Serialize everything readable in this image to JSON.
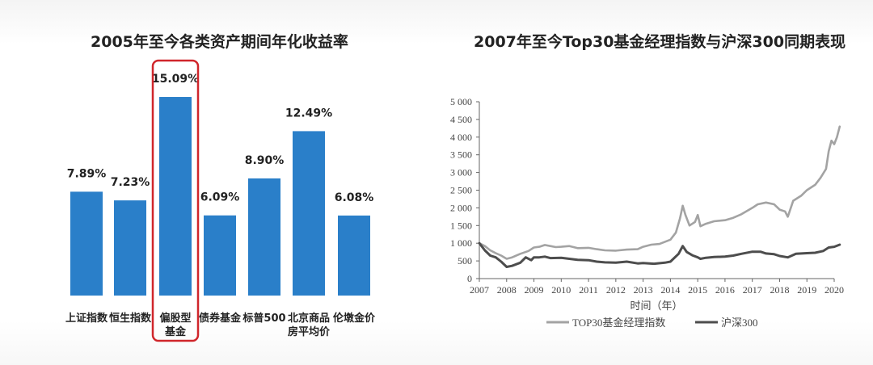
{
  "chart_data": [
    {
      "type": "bar",
      "title": "2005年至今各类资产期间年化收益率",
      "categories": [
        "上证指数",
        "恒生指数",
        "偏股型\n基金",
        "债券基金",
        "标普500",
        "北京商品\n房平均价",
        "伦墩金价"
      ],
      "values": [
        7.89,
        7.23,
        15.09,
        6.09,
        8.9,
        12.49,
        6.08
      ],
      "value_labels": [
        "7.89%",
        "7.23%",
        "15.09%",
        "6.09%",
        "8.90%",
        "12.49%",
        "6.08%"
      ],
      "bar_color": "#2a7fc9",
      "highlight_index": 2,
      "highlight_color": "#d0262b"
    },
    {
      "type": "line",
      "title": "2007年至今Top30基金经理指数与沪深300同期表现",
      "xlabel": "时间（年）",
      "xlim": [
        2007,
        2020
      ],
      "ylim": [
        0,
        5000
      ],
      "x_ticks": [
        "2007",
        "2008",
        "2009",
        "2010",
        "2011",
        "2012",
        "2013",
        "2014",
        "2015",
        "2016",
        "2017",
        "2018",
        "2019",
        "2020"
      ],
      "y_ticks": [
        "0",
        "500",
        "1 000",
        "1 500",
        "2 000",
        "2 500",
        "3 000",
        "3 500",
        "4 000",
        "4 500",
        "5 000"
      ],
      "legend_position": "bottom",
      "series": [
        {
          "name": "TOP30基金经理指数",
          "color": "#a3a3a3",
          "points": [
            [
              2007.0,
              1000
            ],
            [
              2007.2,
              920
            ],
            [
              2007.4,
              800
            ],
            [
              2007.6,
              720
            ],
            [
              2007.8,
              650
            ],
            [
              2008.0,
              560
            ],
            [
              2008.2,
              600
            ],
            [
              2008.5,
              700
            ],
            [
              2008.8,
              780
            ],
            [
              2009.0,
              880
            ],
            [
              2009.2,
              900
            ],
            [
              2009.4,
              950
            ],
            [
              2009.6,
              920
            ],
            [
              2009.8,
              890
            ],
            [
              2010.0,
              900
            ],
            [
              2010.3,
              920
            ],
            [
              2010.6,
              860
            ],
            [
              2011.0,
              870
            ],
            [
              2011.3,
              830
            ],
            [
              2011.6,
              800
            ],
            [
              2012.0,
              790
            ],
            [
              2012.4,
              820
            ],
            [
              2012.8,
              830
            ],
            [
              2013.0,
              900
            ],
            [
              2013.3,
              960
            ],
            [
              2013.6,
              980
            ],
            [
              2014.0,
              1100
            ],
            [
              2014.2,
              1300
            ],
            [
              2014.35,
              1700
            ],
            [
              2014.45,
              2060
            ],
            [
              2014.55,
              1800
            ],
            [
              2014.7,
              1500
            ],
            [
              2014.9,
              1600
            ],
            [
              2015.0,
              1800
            ],
            [
              2015.1,
              1480
            ],
            [
              2015.3,
              1550
            ],
            [
              2015.6,
              1620
            ],
            [
              2016.0,
              1650
            ],
            [
              2016.3,
              1720
            ],
            [
              2016.6,
              1820
            ],
            [
              2017.0,
              2000
            ],
            [
              2017.2,
              2100
            ],
            [
              2017.5,
              2150
            ],
            [
              2017.8,
              2100
            ],
            [
              2018.0,
              1950
            ],
            [
              2018.2,
              1900
            ],
            [
              2018.3,
              1750
            ],
            [
              2018.5,
              2200
            ],
            [
              2018.8,
              2350
            ],
            [
              2019.0,
              2500
            ],
            [
              2019.3,
              2650
            ],
            [
              2019.5,
              2850
            ],
            [
              2019.7,
              3100
            ],
            [
              2019.8,
              3600
            ],
            [
              2019.9,
              3900
            ],
            [
              2020.0,
              3800
            ],
            [
              2020.1,
              4000
            ],
            [
              2020.2,
              4300
            ]
          ]
        },
        {
          "name": "沪深300",
          "color": "#4d4d4d",
          "points": [
            [
              2007.0,
              1000
            ],
            [
              2007.2,
              800
            ],
            [
              2007.4,
              650
            ],
            [
              2007.6,
              600
            ],
            [
              2007.8,
              480
            ],
            [
              2008.0,
              330
            ],
            [
              2008.2,
              360
            ],
            [
              2008.5,
              450
            ],
            [
              2008.7,
              600
            ],
            [
              2008.9,
              520
            ],
            [
              2009.0,
              600
            ],
            [
              2009.2,
              600
            ],
            [
              2009.4,
              620
            ],
            [
              2009.6,
              580
            ],
            [
              2010.0,
              590
            ],
            [
              2010.3,
              560
            ],
            [
              2010.6,
              530
            ],
            [
              2011.0,
              520
            ],
            [
              2011.3,
              480
            ],
            [
              2011.6,
              460
            ],
            [
              2012.0,
              450
            ],
            [
              2012.4,
              480
            ],
            [
              2012.8,
              430
            ],
            [
              2013.0,
              440
            ],
            [
              2013.4,
              420
            ],
            [
              2013.8,
              450
            ],
            [
              2014.0,
              480
            ],
            [
              2014.3,
              700
            ],
            [
              2014.45,
              920
            ],
            [
              2014.6,
              750
            ],
            [
              2014.8,
              660
            ],
            [
              2015.0,
              600
            ],
            [
              2015.1,
              560
            ],
            [
              2015.3,
              590
            ],
            [
              2015.6,
              610
            ],
            [
              2016.0,
              620
            ],
            [
              2016.3,
              650
            ],
            [
              2016.6,
              700
            ],
            [
              2017.0,
              760
            ],
            [
              2017.3,
              760
            ],
            [
              2017.5,
              710
            ],
            [
              2017.8,
              690
            ],
            [
              2018.0,
              640
            ],
            [
              2018.3,
              600
            ],
            [
              2018.6,
              700
            ],
            [
              2019.0,
              720
            ],
            [
              2019.3,
              730
            ],
            [
              2019.6,
              780
            ],
            [
              2019.8,
              880
            ],
            [
              2020.0,
              900
            ],
            [
              2020.2,
              960
            ]
          ]
        }
      ]
    }
  ]
}
